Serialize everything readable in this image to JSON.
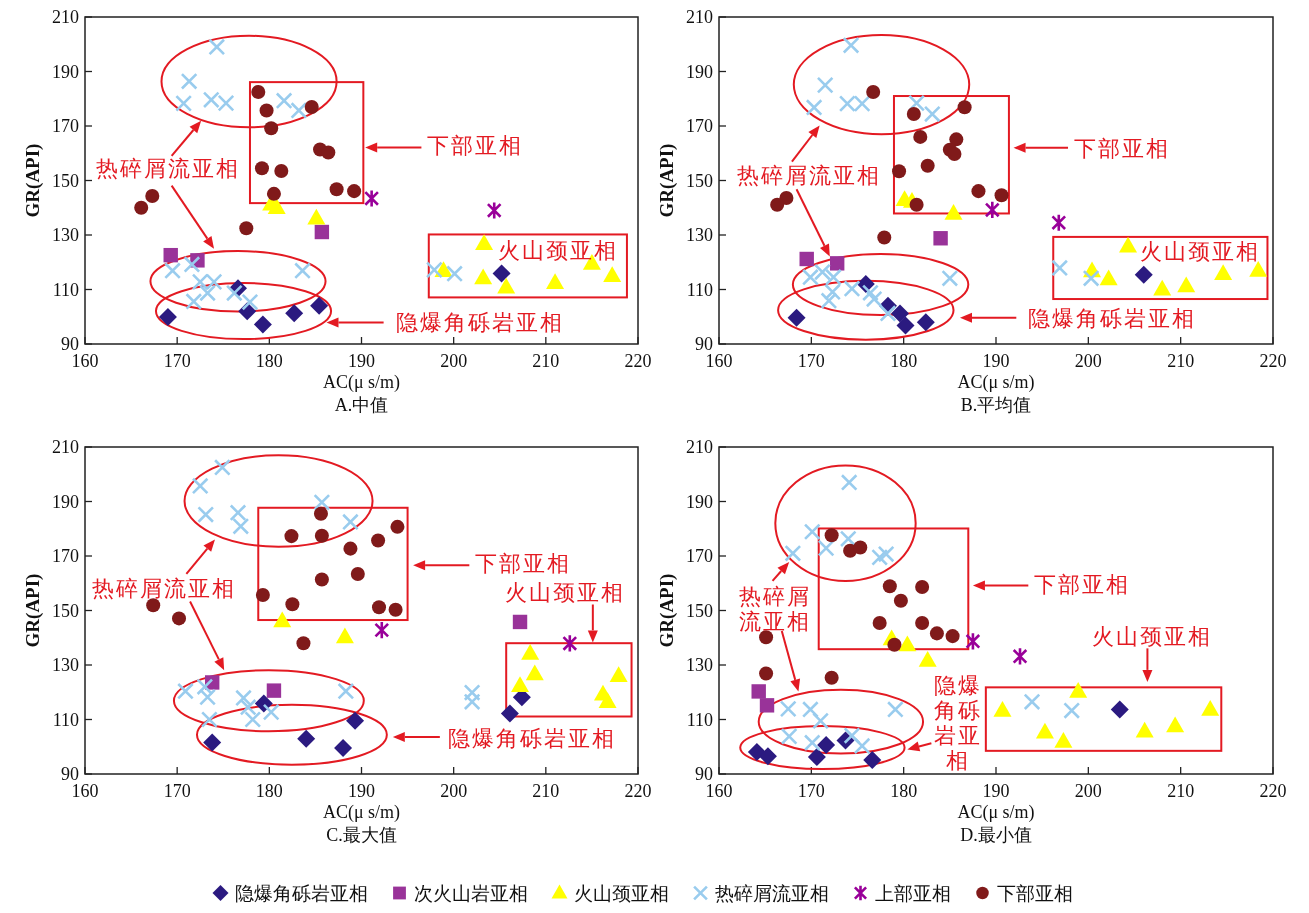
{
  "chart_data": [
    {
      "type": "scatter",
      "title": "A.中值",
      "xlabel": "AC(μ s/m)",
      "ylabel": "GR(API)",
      "xlim": [
        160,
        220
      ],
      "ylim": [
        90,
        210
      ],
      "xticks": [
        160,
        170,
        180,
        190,
        200,
        210,
        220
      ],
      "yticks": [
        90,
        110,
        130,
        150,
        170,
        190,
        210
      ],
      "legend": "bottom",
      "series": [
        {
          "name": "隐爆角砾岩亚相",
          "color": "#2b1a80",
          "marker": "diamond",
          "x": [
            169.0,
            176.6,
            177.6,
            179.3,
            182.7,
            185.4,
            205.2
          ],
          "values": [
            99.9,
            110.5,
            102.0,
            97.2,
            101.3,
            104.0,
            115.9
          ]
        },
        {
          "name": "次火山岩亚相",
          "color": "#993399",
          "marker": "square",
          "x": [
            169.3,
            172.2,
            185.7
          ],
          "values": [
            122.6,
            120.7,
            131.1
          ]
        },
        {
          "name": "火山颈亚相",
          "color": "#ffff00",
          "marker": "triangle",
          "x": [
            180.2,
            180.8,
            185.1,
            203.3,
            198.9,
            203.2,
            205.7,
            211.0,
            215.0,
            217.2
          ],
          "values": [
            141.3,
            140.0,
            136.2,
            126.8,
            116.9,
            114.2,
            110.8,
            112.5,
            119.6,
            115.1
          ]
        },
        {
          "name": "热碎屑流亚相",
          "color": "#99ccee",
          "marker": "cross",
          "x": [
            174.3,
            171.3,
            170.7,
            173.7,
            175.3,
            181.6,
            183.2,
            169.5,
            171.6,
            172.5,
            174.0,
            171.8,
            173.3,
            176.2,
            177.9,
            183.6,
            197.9,
            200.1
          ],
          "values": [
            199.0,
            186.4,
            178.3,
            179.6,
            178.4,
            179.3,
            175.7,
            116.9,
            119.2,
            112.8,
            112.8,
            105.6,
            108.7,
            108.7,
            105.4,
            116.9,
            117.2,
            115.8
          ]
        },
        {
          "name": "上部亚相",
          "color": "#990099",
          "x": [
            191.1,
            204.4
          ],
          "values": [
            143.4,
            139.0
          ]
        },
        {
          "name": "下部亚相",
          "color": "#801a1a",
          "marker": "circle",
          "x": [
            178.8,
            179.7,
            184.6,
            180.2,
            185.5,
            186.4,
            179.2,
            181.3,
            180.5,
            187.3,
            189.2,
            167.3,
            166.1,
            177.5
          ],
          "values": [
            182.5,
            175.7,
            177.0,
            169.2,
            161.4,
            160.3,
            154.5,
            153.5,
            145.1,
            146.8,
            146.1,
            144.3,
            140.0,
            132.5
          ]
        }
      ],
      "annotations": [
        "热碎屑流亚相",
        "下部亚相",
        "火山颈亚相",
        "隐爆角砾岩亚相"
      ]
    },
    {
      "type": "scatter",
      "title": "B.平均值",
      "xlabel": "AC(μ s/m)",
      "ylabel": "GR(API)",
      "xlim": [
        160,
        220
      ],
      "ylim": [
        90,
        210
      ],
      "xticks": [
        160,
        170,
        180,
        190,
        200,
        210,
        220
      ],
      "yticks": [
        90,
        110,
        130,
        150,
        170,
        190,
        210
      ],
      "series": [
        {
          "color": "#2b1a80",
          "marker": "diamond",
          "x": [
            168.4,
            175.9,
            178.3,
            179.6,
            180.2,
            182.4,
            206.0
          ],
          "values": [
            99.6,
            112.0,
            104.0,
            101.2,
            96.8,
            98.0,
            115.4
          ]
        },
        {
          "color": "#993399",
          "marker": "square",
          "x": [
            169.5,
            172.8,
            184.0
          ],
          "values": [
            121.2,
            119.6,
            128.8
          ]
        },
        {
          "color": "#ffff00",
          "marker": "triangle",
          "x": [
            180.1,
            180.9,
            185.4,
            204.3,
            200.4,
            202.2,
            208.0,
            210.6,
            214.6,
            218.4
          ],
          "values": [
            143.0,
            142.3,
            137.9,
            125.9,
            116.8,
            113.9,
            110.1,
            111.3,
            115.8,
            117.0
          ]
        },
        {
          "color": "#99ccee",
          "marker": "cross",
          "x": [
            174.3,
            171.5,
            170.3,
            173.9,
            175.5,
            181.4,
            183.1,
            169.9,
            171.2,
            172.4,
            172.3,
            171.9,
            174.4,
            176.4,
            176.8,
            178.3,
            185.0,
            196.9,
            200.3
          ],
          "values": [
            199.6,
            185.0,
            176.8,
            178.2,
            178.2,
            178.4,
            174.4,
            114.5,
            116.4,
            114.5,
            109.1,
            105.9,
            110.3,
            108.8,
            106.5,
            101.2,
            114.1,
            117.9,
            114.1
          ]
        },
        {
          "color": "#990099",
          "x": [
            189.6,
            196.8
          ],
          "values": [
            139.2,
            134.5
          ]
        },
        {
          "color": "#801a1a",
          "marker": "circle",
          "x": [
            176.7,
            181.1,
            186.6,
            181.8,
            185.7,
            185.0,
            185.5,
            182.6,
            179.5,
            188.1,
            190.6,
            181.4,
            167.3,
            166.3,
            177.9
          ],
          "values": [
            182.5,
            174.4,
            176.9,
            166.0,
            165.1,
            161.3,
            159.7,
            155.4,
            153.4,
            146.1,
            144.6,
            141.1,
            143.6,
            141.1,
            129.1
          ]
        }
      ],
      "annotations": [
        "热碎屑流亚相",
        "下部亚相",
        "火山颈亚相",
        "隐爆角砾岩亚相"
      ]
    },
    {
      "type": "scatter",
      "title": "C.最大值",
      "xlabel": "AC(μ s/m)",
      "ylabel": "GR(API)",
      "xlim": [
        160,
        220
      ],
      "ylim": [
        90,
        210
      ],
      "xticks": [
        160,
        170,
        180,
        190,
        200,
        210,
        220
      ],
      "yticks": [
        90,
        110,
        130,
        150,
        170,
        190,
        210
      ],
      "series": [
        {
          "color": "#2b1a80",
          "marker": "diamond",
          "x": [
            173.8,
            179.4,
            184.0,
            188.0,
            189.3,
            206.1,
            207.4
          ],
          "values": [
            101.6,
            115.9,
            102.9,
            99.5,
            109.5,
            112.2,
            118.2
          ]
        },
        {
          "color": "#993399",
          "marker": "square",
          "x": [
            173.8,
            180.5,
            207.2
          ],
          "values": [
            123.6,
            120.6,
            145.8
          ]
        },
        {
          "color": "#ffff00",
          "marker": "triangle",
          "x": [
            181.4,
            188.2,
            208.3,
            208.8,
            207.2,
            217.9,
            216.2,
            216.7
          ],
          "values": [
            146.2,
            140.3,
            134.2,
            126.7,
            122.4,
            126.1,
            119.3,
            116.5
          ]
        },
        {
          "color": "#99ccee",
          "marker": "cross",
          "x": [
            174.9,
            172.5,
            173.1,
            176.6,
            176.9,
            185.7,
            188.8,
            170.9,
            173.0,
            173.3,
            177.2,
            177.7,
            178.2,
            180.2,
            188.3,
            173.5,
            202.0,
            202.0
          ],
          "values": [
            202.5,
            195.7,
            185.2,
            185.9,
            180.9,
            189.7,
            182.5,
            120.4,
            122.0,
            118.2,
            117.9,
            114.5,
            110.0,
            112.7,
            120.4,
            110.0,
            119.9,
            116.5
          ]
        },
        {
          "color": "#990099",
          "x": [
            192.2,
            212.6
          ],
          "values": [
            142.8,
            137.9
          ]
        },
        {
          "color": "#801a1a",
          "marker": "circle",
          "x": [
            185.6,
            182.4,
            185.7,
            193.9,
            191.8,
            188.8,
            189.6,
            185.7,
            179.3,
            182.5,
            191.9,
            193.7,
            167.4,
            170.2,
            183.7
          ],
          "values": [
            185.5,
            177.3,
            177.4,
            180.7,
            175.7,
            172.7,
            163.4,
            161.4,
            155.7,
            152.3,
            151.2,
            150.3,
            151.9,
            147.1,
            138.0
          ]
        }
      ],
      "annotations": [
        "热碎屑流亚相",
        "下部亚相",
        "火山颈亚相",
        "隐爆角砾岩亚相"
      ]
    },
    {
      "type": "scatter",
      "title": "D.最小值",
      "xlabel": "AC(μ s/m)",
      "ylabel": "GR(API)",
      "xlim": [
        160,
        220
      ],
      "ylim": [
        90,
        210
      ],
      "xticks": [
        160,
        170,
        180,
        190,
        200,
        210,
        220
      ],
      "yticks": [
        90,
        110,
        130,
        150,
        170,
        190,
        210
      ],
      "series": [
        {
          "color": "#2b1a80",
          "marker": "diamond",
          "x": [
            164.1,
            165.3,
            170.6,
            171.6,
            173.7,
            176.6,
            203.4
          ],
          "values": [
            98.1,
            96.5,
            96.2,
            100.6,
            102.3,
            95.1,
            113.7
          ]
        },
        {
          "color": "#993399",
          "marker": "square",
          "x": [
            164.3,
            165.2
          ],
          "values": [
            120.3,
            115.2
          ]
        },
        {
          "color": "#ffff00",
          "marker": "triangle",
          "x": [
            178.7,
            180.4,
            182.6,
            190.7,
            195.3,
            197.3,
            198.9,
            206.1,
            209.4,
            213.2
          ],
          "values": [
            139.6,
            137.4,
            131.7,
            113.3,
            105.3,
            101.9,
            120.3,
            105.7,
            107.6,
            113.7
          ]
        },
        {
          "color": "#99ccee",
          "marker": "cross",
          "x": [
            174.1,
            170.1,
            168.0,
            171.6,
            174.0,
            177.4,
            178.1,
            167.5,
            169.9,
            171.0,
            179.1,
            167.6,
            170.1,
            174.4,
            175.5,
            193.9,
            198.2
          ],
          "values": [
            197.0,
            178.9,
            171.0,
            172.9,
            176.3,
            169.5,
            170.7,
            113.9,
            113.7,
            109.5,
            113.7,
            103.8,
            101.5,
            104.1,
            100.3,
            116.5,
            113.3
          ]
        },
        {
          "color": "#990099",
          "x": [
            187.5,
            192.6
          ],
          "values": [
            138.7,
            133.2
          ]
        },
        {
          "color": "#801a1a",
          "marker": "circle",
          "x": [
            172.2,
            174.2,
            175.3,
            178.5,
            182.0,
            179.7,
            177.4,
            182.0,
            183.6,
            185.3,
            179.0,
            165.1,
            165.1,
            172.2
          ],
          "values": [
            177.6,
            171.9,
            173.1,
            158.9,
            158.6,
            153.6,
            145.4,
            145.4,
            141.6,
            140.6,
            137.4,
            140.2,
            126.9,
            125.3
          ]
        }
      ],
      "annotations": [
        "热碎屑流亚相",
        "下部亚相",
        "火山颈亚相",
        "隐爆角砾岩亚相"
      ]
    }
  ]
}
